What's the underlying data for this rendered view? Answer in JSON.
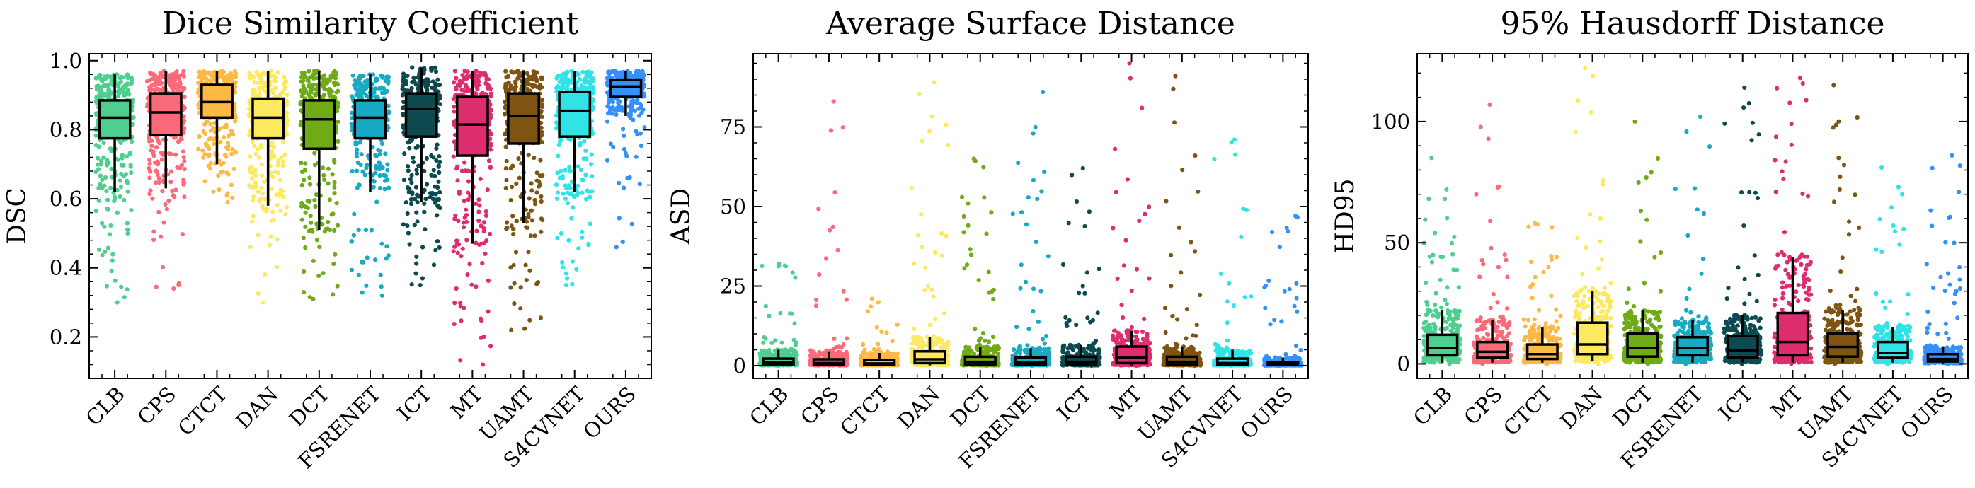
{
  "chart_data": [
    {
      "type": "box",
      "title": "Dice Similarity Coefficient",
      "xlabel": "",
      "ylabel": "DSC",
      "ylim": [
        0.08,
        1.02
      ],
      "yticks": [
        0.2,
        0.4,
        0.6,
        0.8,
        1.0
      ],
      "ytick_labels": [
        "0.2",
        "0.4",
        "0.6",
        "0.8",
        "1.0"
      ],
      "grid": false,
      "categories": [
        "CLB",
        "CPS",
        "CTCT",
        "DAN",
        "DCT",
        "FSRENET",
        "ICT",
        "MT",
        "UAMT",
        "S4CVNET",
        "OURS"
      ],
      "colors": [
        "#4fcf8f",
        "#fa6a78",
        "#fdb945",
        "#fde95f",
        "#6faa17",
        "#18aac2",
        "#0d4a50",
        "#de2d6e",
        "#7d5412",
        "#31e3e6",
        "#3590f8"
      ],
      "boxes": [
        {
          "whislo": 0.62,
          "q1": 0.775,
          "med": 0.835,
          "q3": 0.885,
          "whishi": 0.96,
          "pmin": 0.3,
          "pmax": 0.96
        },
        {
          "whislo": 0.63,
          "q1": 0.785,
          "med": 0.85,
          "q3": 0.905,
          "whishi": 0.97,
          "pmin": 0.34,
          "pmax": 0.97
        },
        {
          "whislo": 0.7,
          "q1": 0.835,
          "med": 0.88,
          "q3": 0.93,
          "whishi": 0.97,
          "pmin": 0.59,
          "pmax": 0.97
        },
        {
          "whislo": 0.58,
          "q1": 0.775,
          "med": 0.835,
          "q3": 0.89,
          "whishi": 0.97,
          "pmin": 0.3,
          "pmax": 0.97
        },
        {
          "whislo": 0.51,
          "q1": 0.745,
          "med": 0.83,
          "q3": 0.885,
          "whishi": 0.97,
          "pmin": 0.31,
          "pmax": 0.97
        },
        {
          "whislo": 0.62,
          "q1": 0.775,
          "med": 0.835,
          "q3": 0.885,
          "whishi": 0.96,
          "pmin": 0.32,
          "pmax": 0.96
        },
        {
          "whislo": 0.59,
          "q1": 0.78,
          "med": 0.86,
          "q3": 0.905,
          "whishi": 0.98,
          "pmin": 0.35,
          "pmax": 0.98
        },
        {
          "whislo": 0.47,
          "q1": 0.725,
          "med": 0.815,
          "q3": 0.895,
          "whishi": 0.97,
          "pmin": 0.12,
          "pmax": 0.97
        },
        {
          "whislo": 0.53,
          "q1": 0.76,
          "med": 0.84,
          "q3": 0.905,
          "whishi": 0.97,
          "pmin": 0.22,
          "pmax": 0.97
        },
        {
          "whislo": 0.62,
          "q1": 0.78,
          "med": 0.855,
          "q3": 0.91,
          "whishi": 0.97,
          "pmin": 0.35,
          "pmax": 0.97
        },
        {
          "whislo": 0.84,
          "q1": 0.895,
          "med": 0.925,
          "q3": 0.945,
          "whishi": 0.97,
          "pmin": 0.46,
          "pmax": 0.97
        }
      ]
    },
    {
      "type": "box",
      "title": "Average Surface Distance",
      "xlabel": "",
      "ylabel": "ASD",
      "ylim": [
        -4,
        98
      ],
      "yticks": [
        0,
        25,
        50,
        75
      ],
      "ytick_labels": [
        "0",
        "25",
        "50",
        "75"
      ],
      "grid": false,
      "categories": [
        "CLB",
        "CPS",
        "CTCT",
        "DAN",
        "DCT",
        "FSRENET",
        "ICT",
        "MT",
        "UAMT",
        "S4CVNET",
        "OURS"
      ],
      "colors": [
        "#4fcf8f",
        "#fa6a78",
        "#fdb945",
        "#fde95f",
        "#6faa17",
        "#18aac2",
        "#0d4a50",
        "#de2d6e",
        "#7d5412",
        "#31e3e6",
        "#3590f8"
      ],
      "boxes": [
        {
          "whislo": 0.1,
          "q1": 0.4,
          "med": 1.0,
          "q3": 2.2,
          "whishi": 5,
          "pmin": 0,
          "pmax": 32
        },
        {
          "whislo": 0.1,
          "q1": 0.3,
          "med": 0.8,
          "q3": 2.0,
          "whishi": 4.5,
          "pmin": 0,
          "pmax": 83
        },
        {
          "whislo": 0.1,
          "q1": 0.3,
          "med": 0.7,
          "q3": 1.8,
          "whishi": 4,
          "pmin": 0,
          "pmax": 21
        },
        {
          "whislo": 0.1,
          "q1": 0.8,
          "med": 2.0,
          "q3": 4.5,
          "whishi": 9,
          "pmin": 0,
          "pmax": 89
        },
        {
          "whislo": 0.1,
          "q1": 0.4,
          "med": 1.2,
          "q3": 2.8,
          "whishi": 6,
          "pmin": 0,
          "pmax": 65
        },
        {
          "whislo": 0.1,
          "q1": 0.4,
          "med": 1.0,
          "q3": 2.5,
          "whishi": 5.5,
          "pmin": 0,
          "pmax": 86
        },
        {
          "whislo": 0.1,
          "q1": 0.4,
          "med": 1.2,
          "q3": 2.8,
          "whishi": 6.5,
          "pmin": 0,
          "pmax": 62
        },
        {
          "whislo": 0.1,
          "q1": 0.8,
          "med": 2.5,
          "q3": 6.0,
          "whishi": 11,
          "pmin": 0,
          "pmax": 95
        },
        {
          "whislo": 0.1,
          "q1": 0.4,
          "med": 1.2,
          "q3": 2.8,
          "whishi": 6,
          "pmin": 0,
          "pmax": 91
        },
        {
          "whislo": 0.1,
          "q1": 0.3,
          "med": 0.8,
          "q3": 2.2,
          "whishi": 5,
          "pmin": 0,
          "pmax": 71
        },
        {
          "whislo": 0.05,
          "q1": 0.2,
          "med": 0.4,
          "q3": 1.0,
          "whishi": 2.5,
          "pmin": 0,
          "pmax": 47
        }
      ]
    },
    {
      "type": "box",
      "title": "95% Hausdorff Distance",
      "xlabel": "",
      "ylabel": "HD95",
      "ylim": [
        -6,
        128
      ],
      "yticks": [
        0,
        50,
        100
      ],
      "ytick_labels": [
        "0",
        "50",
        "100"
      ],
      "grid": false,
      "categories": [
        "CLB",
        "CPS",
        "CTCT",
        "DAN",
        "DCT",
        "FSRENET",
        "ICT",
        "MT",
        "UAMT",
        "S4CVNET",
        "OURS"
      ],
      "colors": [
        "#4fcf8f",
        "#fa6a78",
        "#fdb945",
        "#fde95f",
        "#6faa17",
        "#18aac2",
        "#0d4a50",
        "#de2d6e",
        "#7d5412",
        "#31e3e6",
        "#3590f8"
      ],
      "boxes": [
        {
          "whislo": 0.5,
          "q1": 3.5,
          "med": 6.5,
          "q3": 12,
          "whishi": 22,
          "pmin": 0,
          "pmax": 85
        },
        {
          "whislo": 0.5,
          "q1": 2.5,
          "med": 5,
          "q3": 9,
          "whishi": 18,
          "pmin": 0,
          "pmax": 107
        },
        {
          "whislo": 0.5,
          "q1": 2,
          "med": 4,
          "q3": 8,
          "whishi": 15,
          "pmin": 0,
          "pmax": 58
        },
        {
          "whislo": 1,
          "q1": 4,
          "med": 8,
          "q3": 17,
          "whishi": 30,
          "pmin": 0,
          "pmax": 122
        },
        {
          "whislo": 0.5,
          "q1": 3,
          "med": 6.5,
          "q3": 12.5,
          "whishi": 22,
          "pmin": 0,
          "pmax": 100
        },
        {
          "whislo": 0.5,
          "q1": 3.5,
          "med": 6.5,
          "q3": 11,
          "whishi": 18,
          "pmin": 0,
          "pmax": 102
        },
        {
          "whislo": 0.5,
          "q1": 2.5,
          "med": 5.5,
          "q3": 11.5,
          "whishi": 20,
          "pmin": 0,
          "pmax": 114
        },
        {
          "whislo": 0.5,
          "q1": 3.5,
          "med": 9,
          "q3": 21,
          "whishi": 44,
          "pmin": 0,
          "pmax": 118
        },
        {
          "whislo": 0.5,
          "q1": 3,
          "med": 7,
          "q3": 12.5,
          "whishi": 22,
          "pmin": 0,
          "pmax": 115
        },
        {
          "whislo": 0.5,
          "q1": 2.5,
          "med": 4.5,
          "q3": 9,
          "whishi": 15,
          "pmin": 0,
          "pmax": 81
        },
        {
          "whislo": 0.2,
          "q1": 1,
          "med": 2,
          "q3": 4,
          "whishi": 7,
          "pmin": 0,
          "pmax": 86
        }
      ]
    }
  ]
}
